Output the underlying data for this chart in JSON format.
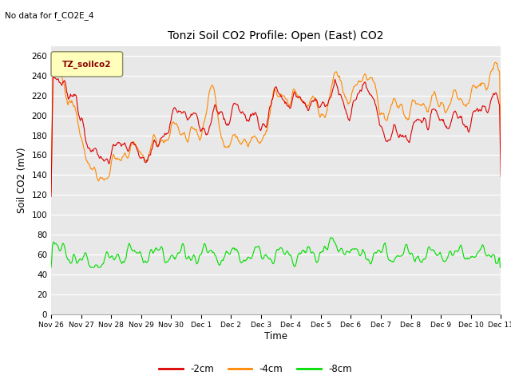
{
  "title": "Tonzi Soil CO2 Profile: Open (East) CO2",
  "subtitle": "No data for f_CO2E_4",
  "ylabel": "Soil CO2 (mV)",
  "xlabel": "Time",
  "legend_label": "TZ_soilco2",
  "ylim": [
    0,
    270
  ],
  "yticks": [
    0,
    20,
    40,
    60,
    80,
    100,
    120,
    140,
    160,
    180,
    200,
    220,
    240,
    260
  ],
  "xtick_labels": [
    "Nov 26",
    "Nov 27",
    "Nov 28",
    "Nov 29",
    "Nov 30",
    "Dec 1",
    "Dec 2",
    "Dec 3",
    "Dec 4",
    "Dec 5",
    "Dec 6",
    "Dec 7",
    "Dec 8",
    "Dec 9",
    "Dec 10",
    "Dec 11"
  ],
  "color_2cm": "#dd0000",
  "color_4cm": "#ff8800",
  "color_8cm": "#00dd00",
  "bg_color": "#e8e8e8",
  "grid_color": "#ffffff",
  "legend_entries": [
    "-2cm",
    "-4cm",
    "-8cm"
  ],
  "n_points": 720,
  "seed": 7
}
